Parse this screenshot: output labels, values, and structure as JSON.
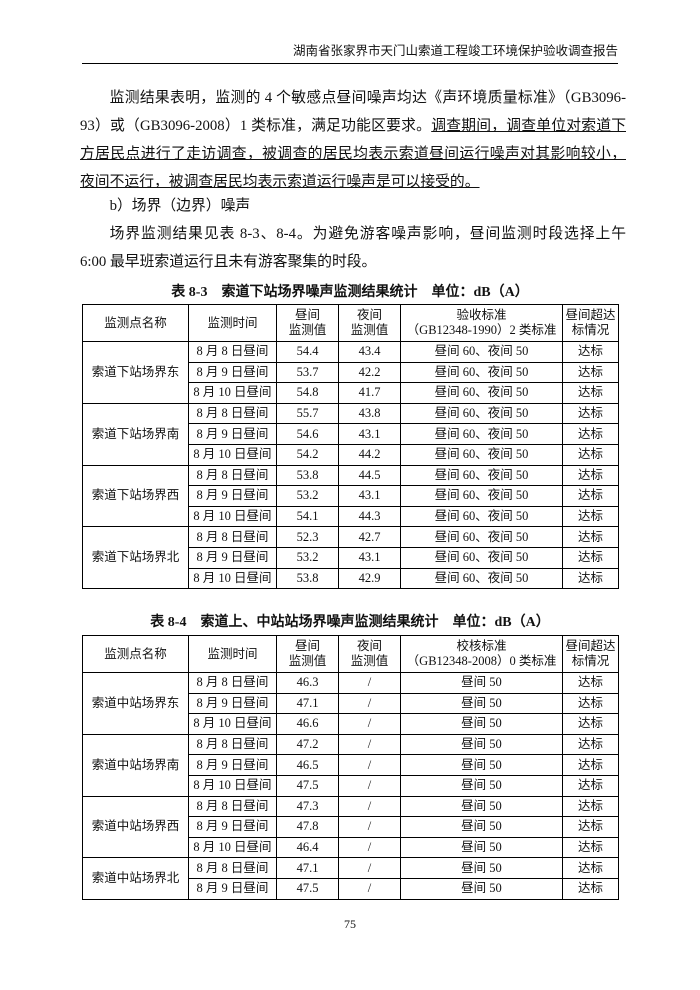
{
  "header": {
    "title": "湖南省张家界市天门山索道工程竣工环境保护验收调查报告"
  },
  "paragraphs": [
    {
      "text": "监测结果表明，监测的 4 个敏感点昼间噪声均达《声环境质量标准》（GB3096-93）或（GB3096-2008）1 类标准，满足功能区要求。",
      "underlined": "调查期间，调查单位对索道下方居民点进行了走访调查，被调查的居民均表示索道昼间运行噪声对其影响较小，夜间不运行，被调查居民均表示索道运行噪声是可以接受的。"
    },
    {
      "text": "b）场界（边界）噪声"
    },
    {
      "text": "场界监测结果见表 8-3、8-4。为避免游客噪声影响，昼间监测时段选择上午 6:00 最早班索道运行且未有游客聚集的时段。"
    }
  ],
  "tables": [
    {
      "caption": "表 8-3　索道下站场界噪声监测结果统计　单位：dB（A）",
      "headers": [
        [
          "监测点名称"
        ],
        [
          "监测时间"
        ],
        [
          "昼间",
          "监测值"
        ],
        [
          "夜间",
          "监测值"
        ],
        [
          "验收标准",
          "（GB12348-1990）2 类标准"
        ],
        [
          "昼间超达",
          "标情况"
        ]
      ],
      "groups": [
        {
          "point": "索道下站场界东",
          "rows": [
            [
              "8 月 8 日昼间",
              54.4,
              43.4,
              "昼间 60、夜间 50",
              "达标"
            ],
            [
              "8 月 9 日昼间",
              53.7,
              42.2,
              "昼间 60、夜间 50",
              "达标"
            ],
            [
              "8 月 10 日昼间",
              54.8,
              41.7,
              "昼间 60、夜间 50",
              "达标"
            ]
          ]
        },
        {
          "point": "索道下站场界南",
          "rows": [
            [
              "8 月 8 日昼间",
              55.7,
              43.8,
              "昼间 60、夜间 50",
              "达标"
            ],
            [
              "8 月 9 日昼间",
              54.6,
              43.1,
              "昼间 60、夜间 50",
              "达标"
            ],
            [
              "8 月 10 日昼间",
              54.2,
              44.2,
              "昼间 60、夜间 50",
              "达标"
            ]
          ]
        },
        {
          "point": "索道下站场界西",
          "rows": [
            [
              "8 月 8 日昼间",
              53.8,
              44.5,
              "昼间 60、夜间 50",
              "达标"
            ],
            [
              "8 月 9 日昼间",
              53.2,
              43.1,
              "昼间 60、夜间 50",
              "达标"
            ],
            [
              "8 月 10 日昼间",
              54.1,
              44.3,
              "昼间 60、夜间 50",
              "达标"
            ]
          ]
        },
        {
          "point": "索道下站场界北",
          "rows": [
            [
              "8 月 8 日昼间",
              52.3,
              42.7,
              "昼间 60、夜间 50",
              "达标"
            ],
            [
              "8 月 9 日昼间",
              53.2,
              43.1,
              "昼间 60、夜间 50",
              "达标"
            ],
            [
              "8 月 10 日昼间",
              53.8,
              42.9,
              "昼间 60、夜间 50",
              "达标"
            ]
          ]
        }
      ]
    },
    {
      "caption": "表 8-4　索道上、中站站场界噪声监测结果统计　单位：dB（A）",
      "headers": [
        [
          "监测点名称"
        ],
        [
          "监测时间"
        ],
        [
          "昼间",
          "监测值"
        ],
        [
          "夜间",
          "监测值"
        ],
        [
          "校核标准",
          "（GB12348-2008）0 类标准"
        ],
        [
          "昼间超达",
          "标情况"
        ]
      ],
      "groups": [
        {
          "point": "索道中站场界东",
          "rows": [
            [
              "8 月 8 日昼间",
              46.3,
              "/",
              "昼间 50",
              "达标"
            ],
            [
              "8 月 9 日昼间",
              47.1,
              "/",
              "昼间 50",
              "达标"
            ],
            [
              "8 月 10 日昼间",
              46.6,
              "/",
              "昼间 50",
              "达标"
            ]
          ]
        },
        {
          "point": "索道中站场界南",
          "rows": [
            [
              "8 月 8 日昼间",
              47.2,
              "/",
              "昼间 50",
              "达标"
            ],
            [
              "8 月 9 日昼间",
              46.5,
              "/",
              "昼间 50",
              "达标"
            ],
            [
              "8 月 10 日昼间",
              47.5,
              "/",
              "昼间 50",
              "达标"
            ]
          ]
        },
        {
          "point": "索道中站场界西",
          "rows": [
            [
              "8 月 8 日昼间",
              47.3,
              "/",
              "昼间 50",
              "达标"
            ],
            [
              "8 月 9 日昼间",
              47.8,
              "/",
              "昼间 50",
              "达标"
            ],
            [
              "8 月 10 日昼间",
              46.4,
              "/",
              "昼间 50",
              "达标"
            ]
          ]
        },
        {
          "point": "索道中站场界北",
          "rows": [
            [
              "8 月 8 日昼间",
              47.1,
              "/",
              "昼间 50",
              "达标"
            ],
            [
              "8 月 9 日昼间",
              47.5,
              "/",
              "昼间 50",
              "达标"
            ]
          ]
        }
      ]
    }
  ],
  "footer": {
    "page": 75
  }
}
